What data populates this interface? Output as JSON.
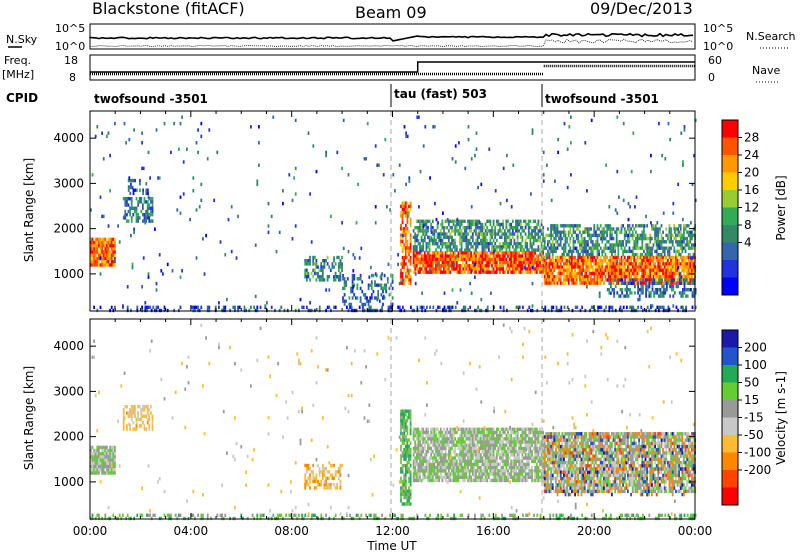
{
  "header": {
    "station": "Blackstone (fitACF)",
    "beam": "Beam 09",
    "date": "09/Dec/2013"
  },
  "noise_panel": {
    "left_label": "N.Sky",
    "right_label": "N.Search",
    "left_ticks": [
      "10^5",
      "10^0"
    ],
    "right_ticks": [
      "10^5",
      "10^0"
    ]
  },
  "freq_panel": {
    "left_label_top": "Freq.",
    "left_label_bottom": "[MHz]",
    "right_label": "Nave",
    "left_ticks": [
      "18",
      "8"
    ],
    "right_ticks": [
      "60",
      "0"
    ]
  },
  "cpid": {
    "label": "CPID",
    "segments": [
      {
        "name": "twofsound -3501",
        "start_hour": 0,
        "end_hour": 12
      },
      {
        "name": "tau (fast) 503",
        "start_hour": 12,
        "end_hour": 18
      },
      {
        "name": "twofsound -3501",
        "start_hour": 18,
        "end_hour": 24
      }
    ]
  },
  "x_axis": {
    "label": "Time UT",
    "ticks": [
      "00:00",
      "04:00",
      "08:00",
      "12:00",
      "16:00",
      "20:00",
      "00:00"
    ],
    "range_hours": [
      0,
      24
    ]
  },
  "power_colorbar": {
    "label": "Power [dB]",
    "ticks": [
      "28",
      "24",
      "20",
      "16",
      "12",
      "8",
      "4"
    ],
    "colors": [
      "#ff0000",
      "#ff5500",
      "#ff9900",
      "#ffcc00",
      "#99cc33",
      "#33aa55",
      "#338866",
      "#3366aa",
      "#2233dd",
      "#0000ff"
    ]
  },
  "velocity_colorbar": {
    "label": "Velocity [m s-1]",
    "ticks": [
      "200",
      "100",
      "50",
      "15",
      "-15",
      "-50",
      "-100",
      "-200"
    ],
    "colors": [
      "#1a1aaa",
      "#2255cc",
      "#22aa55",
      "#66cc33",
      "#999999",
      "#c8c8c8",
      "#ffbb33",
      "#ff8800",
      "#ff4400",
      "#ff0000"
    ]
  },
  "chart_data": [
    {
      "type": "heatmap",
      "title": "Power",
      "ylabel": "Slant Range [km]",
      "xlabel": "",
      "xlim": [
        0,
        24
      ],
      "ylim": [
        180,
        4600
      ],
      "yticks": [
        "1000",
        "2000",
        "3000",
        "4000"
      ],
      "ytick_values": [
        1000,
        2000,
        3000,
        4000
      ],
      "colorbar": "Power [dB]",
      "regions": [
        {
          "t0": 0.0,
          "t1": 1.0,
          "r0": 1200,
          "r1": 1800,
          "power": 26,
          "density": 0.95
        },
        {
          "t0": 0.0,
          "t1": 24.0,
          "r0": 180,
          "r1": 300,
          "power": 6,
          "density": 0.35
        },
        {
          "t0": 1.3,
          "t1": 2.5,
          "r0": 2200,
          "r1": 2700,
          "power": 10,
          "density": 0.6
        },
        {
          "t0": 1.5,
          "t1": 2.3,
          "r0": 2800,
          "r1": 3100,
          "power": 7,
          "density": 0.3
        },
        {
          "t0": 8.5,
          "t1": 10.0,
          "r0": 900,
          "r1": 1400,
          "power": 11,
          "density": 0.5
        },
        {
          "t0": 10.0,
          "t1": 12.0,
          "r0": 300,
          "r1": 1000,
          "power": 9,
          "density": 0.35
        },
        {
          "t0": 12.3,
          "t1": 12.7,
          "r0": 800,
          "r1": 2600,
          "power": 25,
          "density": 0.7
        },
        {
          "t0": 12.8,
          "t1": 18.0,
          "r0": 1050,
          "r1": 1500,
          "power": 27,
          "density": 0.9
        },
        {
          "t0": 12.8,
          "t1": 18.0,
          "r0": 1500,
          "r1": 2200,
          "power": 12,
          "density": 0.65
        },
        {
          "t0": 18.0,
          "t1": 24.0,
          "r0": 800,
          "r1": 1400,
          "power": 26,
          "density": 0.88
        },
        {
          "t0": 18.0,
          "t1": 24.0,
          "r0": 1400,
          "r1": 2100,
          "power": 12,
          "density": 0.6
        },
        {
          "t0": 20.5,
          "t1": 24.0,
          "r0": 500,
          "r1": 900,
          "power": 9,
          "density": 0.45
        },
        {
          "t0": 0.0,
          "t1": 24.0,
          "r0": 300,
          "r1": 4500,
          "power": 8,
          "density": 0.015
        }
      ]
    },
    {
      "type": "heatmap",
      "title": "Velocity",
      "ylabel": "Slant Range [km]",
      "xlabel": "Time UT",
      "xlim": [
        0,
        24
      ],
      "ylim": [
        180,
        4600
      ],
      "yticks": [
        "1000",
        "2000",
        "3000",
        "4000"
      ],
      "ytick_values": [
        1000,
        2000,
        3000,
        4000
      ],
      "colorbar": "Velocity [m s-1]",
      "regions": [
        {
          "t0": 0.0,
          "t1": 1.0,
          "r0": 1200,
          "r1": 1800,
          "velocity": 5,
          "density": 0.95
        },
        {
          "t0": 0.0,
          "t1": 24.0,
          "r0": 180,
          "r1": 300,
          "velocity": 30,
          "density": 0.35
        },
        {
          "t0": 1.3,
          "t1": 2.5,
          "r0": 2200,
          "r1": 2700,
          "velocity": -60,
          "density": 0.55
        },
        {
          "t0": 8.5,
          "t1": 10.0,
          "r0": 900,
          "r1": 1400,
          "velocity": -80,
          "density": 0.5
        },
        {
          "t0": 12.3,
          "t1": 12.7,
          "r0": 500,
          "r1": 2600,
          "velocity": 40,
          "density": 0.75
        },
        {
          "t0": 12.8,
          "t1": 18.0,
          "r0": 1050,
          "r1": 2200,
          "velocity": 0,
          "density": 0.85
        },
        {
          "t0": 18.0,
          "t1": 24.0,
          "r0": 800,
          "r1": 2100,
          "velocity": 0,
          "density": 0.8
        },
        {
          "t0": 18.0,
          "t1": 24.0,
          "r0": 700,
          "r1": 2100,
          "velocity": -180,
          "density": 0.18
        },
        {
          "t0": 18.0,
          "t1": 24.0,
          "r0": 700,
          "r1": 2100,
          "velocity": 180,
          "density": 0.1
        },
        {
          "t0": 0.0,
          "t1": 24.0,
          "r0": 300,
          "r1": 4500,
          "velocity": -40,
          "density": 0.012
        }
      ]
    }
  ]
}
